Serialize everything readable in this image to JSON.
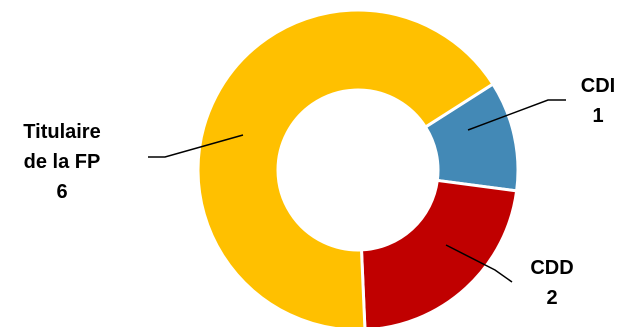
{
  "chart_data": {
    "type": "pie",
    "donut": true,
    "slices": [
      {
        "label": "CDI",
        "value": 1,
        "color": "#4389B6"
      },
      {
        "label": "CDD",
        "value": 2,
        "color": "#C00000"
      },
      {
        "label": "Titulaire de la FP",
        "value": 6,
        "color": "#FFC000"
      }
    ],
    "data_labels": [
      {
        "lines": [
          "CDI",
          "1"
        ]
      },
      {
        "lines": [
          "CDD",
          "2"
        ]
      },
      {
        "lines": [
          "Titulaire",
          "de la FP",
          "6"
        ]
      }
    ]
  }
}
